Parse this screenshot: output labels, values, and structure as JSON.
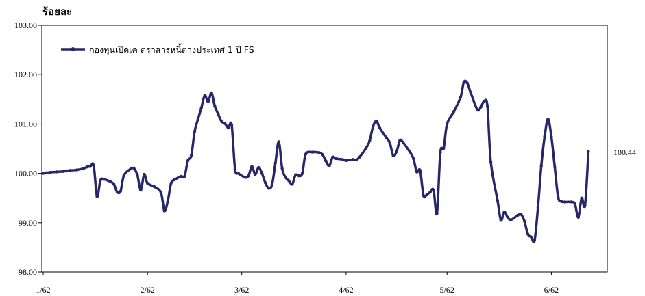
{
  "chart_data": {
    "type": "line",
    "unit_label": "ร้อยละ",
    "ylim": [
      98.0,
      103.0
    ],
    "y_ticks": [
      "103.00",
      "102.00",
      "101.00",
      "100.00",
      "99.00",
      "98.00"
    ],
    "x_ticks": [
      {
        "label": "1/62",
        "x": 0
      },
      {
        "label": "2/62",
        "x": 31
      },
      {
        "label": "3/62",
        "x": 59
      },
      {
        "label": "4/62",
        "x": 90
      },
      {
        "label": "5/62",
        "x": 120
      },
      {
        "label": "6/62",
        "x": 151
      }
    ],
    "xlim": [
      0,
      167
    ],
    "grid": false,
    "legend_position": "top-left",
    "end_label": "100.44",
    "colors": {
      "series": "#262668",
      "axis": "#000000"
    },
    "series": [
      {
        "name": "กองทุนเปิดเค ตราสารหนี้ต่างประเทศ 1 ปี FS",
        "points": [
          [
            0,
            100.0
          ],
          [
            1,
            100.01
          ],
          [
            2,
            100.02
          ],
          [
            4,
            100.03
          ],
          [
            6,
            100.04
          ],
          [
            7,
            100.05
          ],
          [
            8,
            100.06
          ],
          [
            10,
            100.07
          ],
          [
            12,
            100.1
          ],
          [
            13,
            100.13
          ],
          [
            14,
            100.14
          ],
          [
            15,
            100.16
          ],
          [
            16,
            99.53
          ],
          [
            17,
            99.86
          ],
          [
            18,
            99.88
          ],
          [
            20,
            99.83
          ],
          [
            21,
            99.78
          ],
          [
            22,
            99.62
          ],
          [
            23,
            99.64
          ],
          [
            24,
            99.96
          ],
          [
            26,
            100.09
          ],
          [
            27,
            100.1
          ],
          [
            28,
            99.96
          ],
          [
            29,
            99.66
          ],
          [
            30,
            99.98
          ],
          [
            31,
            99.8
          ],
          [
            33,
            99.73
          ],
          [
            35,
            99.61
          ],
          [
            36,
            99.24
          ],
          [
            37,
            99.43
          ],
          [
            38,
            99.8
          ],
          [
            39,
            99.87
          ],
          [
            41,
            99.94
          ],
          [
            42,
            99.94
          ],
          [
            43,
            100.26
          ],
          [
            44,
            100.36
          ],
          [
            45,
            100.85
          ],
          [
            46,
            101.1
          ],
          [
            47,
            101.33
          ],
          [
            48,
            101.58
          ],
          [
            49,
            101.45
          ],
          [
            50,
            101.63
          ],
          [
            51,
            101.36
          ],
          [
            52,
            101.2
          ],
          [
            53,
            101.05
          ],
          [
            54,
            101.01
          ],
          [
            55,
            100.92
          ],
          [
            56,
            100.98
          ],
          [
            57,
            100.09
          ],
          [
            58,
            100.0
          ],
          [
            60,
            99.92
          ],
          [
            61,
            99.95
          ],
          [
            62,
            100.14
          ],
          [
            63,
            99.98
          ],
          [
            64,
            100.12
          ],
          [
            65,
            100.0
          ],
          [
            66,
            99.81
          ],
          [
            67,
            99.7
          ],
          [
            68,
            99.77
          ],
          [
            69,
            100.21
          ],
          [
            70,
            100.64
          ],
          [
            71,
            100.1
          ],
          [
            72,
            99.92
          ],
          [
            73,
            99.85
          ],
          [
            74,
            99.78
          ],
          [
            75,
            99.97
          ],
          [
            76,
            99.95
          ],
          [
            77,
            100.0
          ],
          [
            78,
            100.39
          ],
          [
            80,
            100.43
          ],
          [
            82,
            100.42
          ],
          [
            83,
            100.38
          ],
          [
            84,
            100.25
          ],
          [
            85,
            100.15
          ],
          [
            86,
            100.33
          ],
          [
            87,
            100.3
          ],
          [
            89,
            100.28
          ],
          [
            90,
            100.26
          ],
          [
            92,
            100.28
          ],
          [
            93,
            100.27
          ],
          [
            94,
            100.33
          ],
          [
            96,
            100.52
          ],
          [
            97,
            100.66
          ],
          [
            98,
            100.95
          ],
          [
            99,
            101.06
          ],
          [
            100,
            100.92
          ],
          [
            102,
            100.72
          ],
          [
            103,
            100.62
          ],
          [
            104,
            100.36
          ],
          [
            105,
            100.44
          ],
          [
            106,
            100.67
          ],
          [
            107,
            100.62
          ],
          [
            109,
            100.43
          ],
          [
            110,
            100.3
          ],
          [
            111,
            100.03
          ],
          [
            112,
            100.06
          ],
          [
            113,
            99.55
          ],
          [
            114,
            99.57
          ],
          [
            115,
            99.62
          ],
          [
            116,
            99.66
          ],
          [
            117,
            99.19
          ],
          [
            118,
            100.42
          ],
          [
            119,
            100.51
          ],
          [
            120,
            101.0
          ],
          [
            122,
            101.25
          ],
          [
            124,
            101.54
          ],
          [
            125,
            101.85
          ],
          [
            126,
            101.83
          ],
          [
            127,
            101.64
          ],
          [
            129,
            101.29
          ],
          [
            130,
            101.34
          ],
          [
            131,
            101.46
          ],
          [
            132,
            101.36
          ],
          [
            133,
            100.23
          ],
          [
            135,
            99.45
          ],
          [
            136,
            99.05
          ],
          [
            137,
            99.22
          ],
          [
            138,
            99.11
          ],
          [
            139,
            99.06
          ],
          [
            141,
            99.15
          ],
          [
            142,
            99.17
          ],
          [
            143,
            99.03
          ],
          [
            144,
            98.77
          ],
          [
            145,
            98.71
          ],
          [
            146,
            98.64
          ],
          [
            147,
            99.3
          ],
          [
            148,
            100.15
          ],
          [
            149,
            100.75
          ],
          [
            150,
            101.1
          ],
          [
            151,
            100.74
          ],
          [
            152,
            100.13
          ],
          [
            153,
            99.52
          ],
          [
            154,
            99.43
          ],
          [
            155,
            99.42
          ],
          [
            157,
            99.42
          ],
          [
            158,
            99.38
          ],
          [
            159,
            99.11
          ],
          [
            160,
            99.5
          ],
          [
            161,
            99.35
          ],
          [
            162,
            100.44
          ]
        ]
      }
    ]
  }
}
